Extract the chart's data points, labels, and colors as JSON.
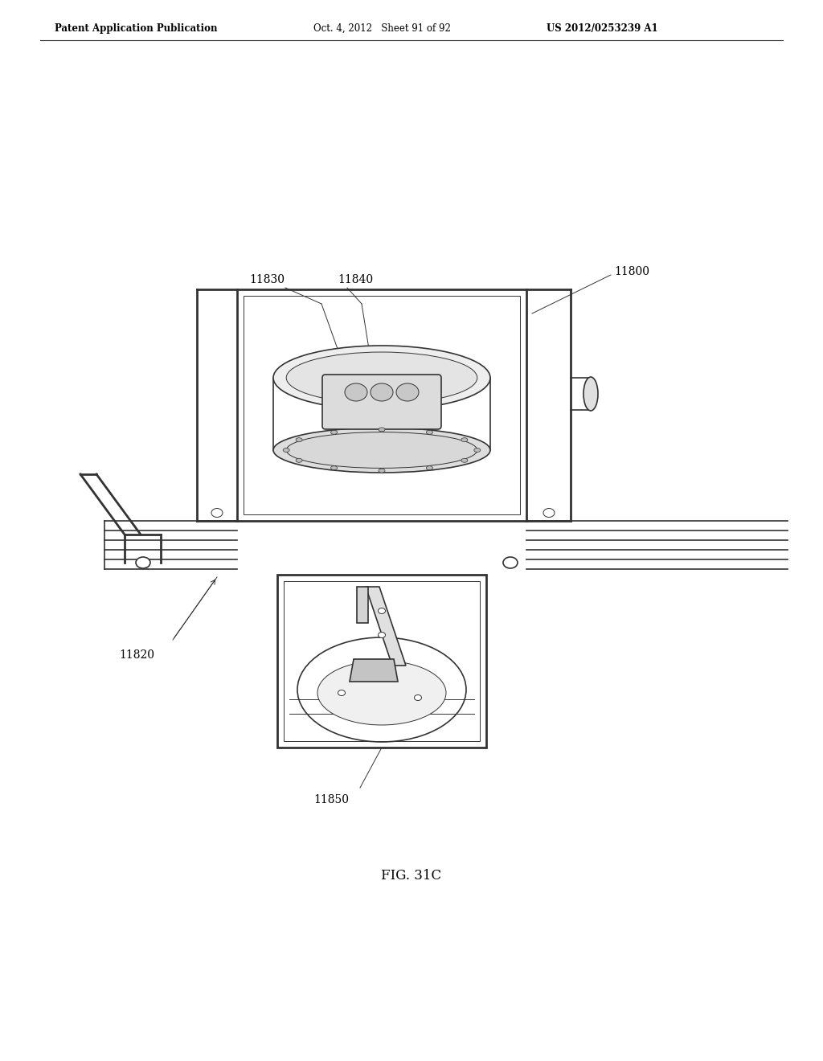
{
  "bg_color": "#ffffff",
  "line_color": "#333333",
  "header_left": "Patent Application Publication",
  "header_center": "Oct. 4, 2012   Sheet 91 of 92",
  "header_right": "US 2012/0253239 A1",
  "fig_label": "FIG. 31C",
  "ref_11800": "11800",
  "ref_11820": "11820",
  "ref_11830": "11830",
  "ref_11840": "11840",
  "ref_11850": "11850",
  "lw_main": 1.2,
  "lw_thick": 2.0,
  "lw_thin": 0.7
}
